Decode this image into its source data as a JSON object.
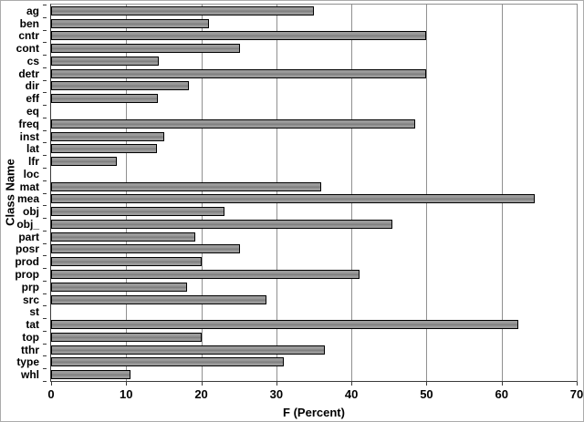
{
  "chart_data": {
    "type": "bar",
    "orientation": "horizontal",
    "title": "",
    "xlabel": "F (Percent)",
    "ylabel": "Class Name",
    "xlim": [
      0,
      70
    ],
    "xticks": [
      0,
      10,
      20,
      30,
      40,
      50,
      60,
      70
    ],
    "grid": true,
    "legend": "none",
    "bar_color": "#959595",
    "bar_border_color": "#000000",
    "gridline_color": "#909090",
    "axis_color": "#3a3a3a",
    "categories": [
      "ag",
      "ben",
      "cntr",
      "cont",
      "cs",
      "detr",
      "dir",
      "eff",
      "eq",
      "freq",
      "inst",
      "lat",
      "lfr",
      "loc",
      "mat",
      "mea",
      "obj",
      "obj_",
      "part",
      "posr",
      "prod",
      "prop",
      "prp",
      "src",
      "st",
      "tat",
      "top",
      "tthr",
      "type",
      "whl"
    ],
    "values": [
      35,
      21,
      50,
      25.2,
      14.4,
      50,
      18.3,
      14.2,
      0,
      48.5,
      15.1,
      14.1,
      8.7,
      0,
      36,
      64.4,
      23.1,
      45.4,
      19.2,
      25.2,
      20,
      41.1,
      18.1,
      28.7,
      0,
      62.2,
      20,
      36.5,
      31,
      10.6
    ]
  }
}
